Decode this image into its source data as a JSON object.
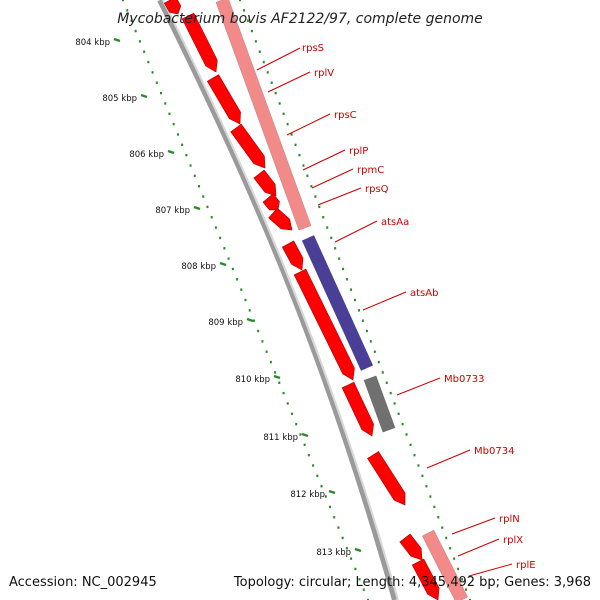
{
  "title": "Mycobacterium bovis AF2122/97, complete genome",
  "footer": {
    "accession": "Accession: NC_002945",
    "topology": "Topology: circular; Length: 4,345,492 bp; Genes: 3,968"
  },
  "colors": {
    "forward_gene": "#ff0000",
    "forward_gene_shadow": "#aa0000",
    "feature_light": "#f28a8a",
    "feature_blue": "#4b3e96",
    "feature_gray": "#707070",
    "backbone": "#7a7a7a",
    "tick_dots": "#2a8a2a",
    "label_text": "#cc0000"
  },
  "ruler": {
    "unit": "kbp",
    "labels": [
      "804 kbp",
      "805 kbp",
      "806 kbp",
      "807 kbp",
      "808 kbp",
      "809 kbp",
      "810 kbp",
      "811 kbp",
      "812 kbp",
      "813 kbp"
    ]
  },
  "gene_labels": [
    "rpsS",
    "rplV",
    "rpsC",
    "rplP",
    "rpmC",
    "rpsQ",
    "atsAa",
    "atsAb",
    "Mb0733",
    "Mb0734",
    "rplN",
    "rplX",
    "rplE"
  ]
}
